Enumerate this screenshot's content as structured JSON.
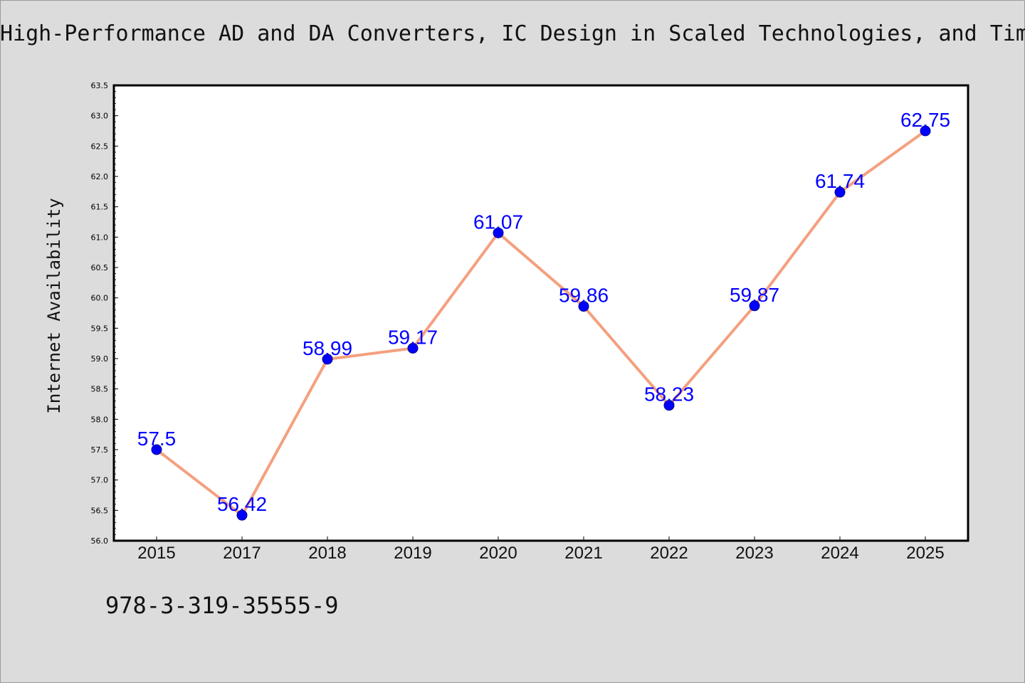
{
  "title": "High-Performance AD and DA Converters, IC Design in Scaled Technologies, and Time-Domain Signal Processing",
  "isbn": "978-3-319-35555-9",
  "colors": {
    "background": "#dcdcdc",
    "plot_background": "#ffffff",
    "line": "#f4a07f",
    "marker": "#0000ff",
    "data_label": "#0000ff"
  },
  "chart_data": {
    "type": "line",
    "title": "High-Performance AD and DA Converters, IC Design in Scaled Technologies, and Time-Domain Signal Processing",
    "xlabel": "",
    "ylabel": "Internet Availability",
    "categories": [
      "2015",
      "2017",
      "2018",
      "2019",
      "2020",
      "2021",
      "2022",
      "2023",
      "2024",
      "2025"
    ],
    "series": [
      {
        "values": [
          57.5,
          56.42,
          58.99,
          59.17,
          61.07,
          59.86,
          58.23,
          59.87,
          61.74,
          62.75
        ],
        "labels": [
          "57.5",
          "56.42",
          "58.99",
          "59.17",
          "61.07",
          "59.86",
          "58.23",
          "59.87",
          "61.74",
          "62.75"
        ]
      }
    ],
    "ylim": [
      56.0,
      63.5
    ],
    "yticks": [
      "56.0",
      "56.5",
      "57.0",
      "57.5",
      "58.0",
      "58.5",
      "59.0",
      "59.5",
      "60.0",
      "60.5",
      "61.0",
      "61.5",
      "62.0",
      "62.5",
      "63.0",
      "63.5"
    ],
    "grid": false,
    "legend": "none"
  }
}
